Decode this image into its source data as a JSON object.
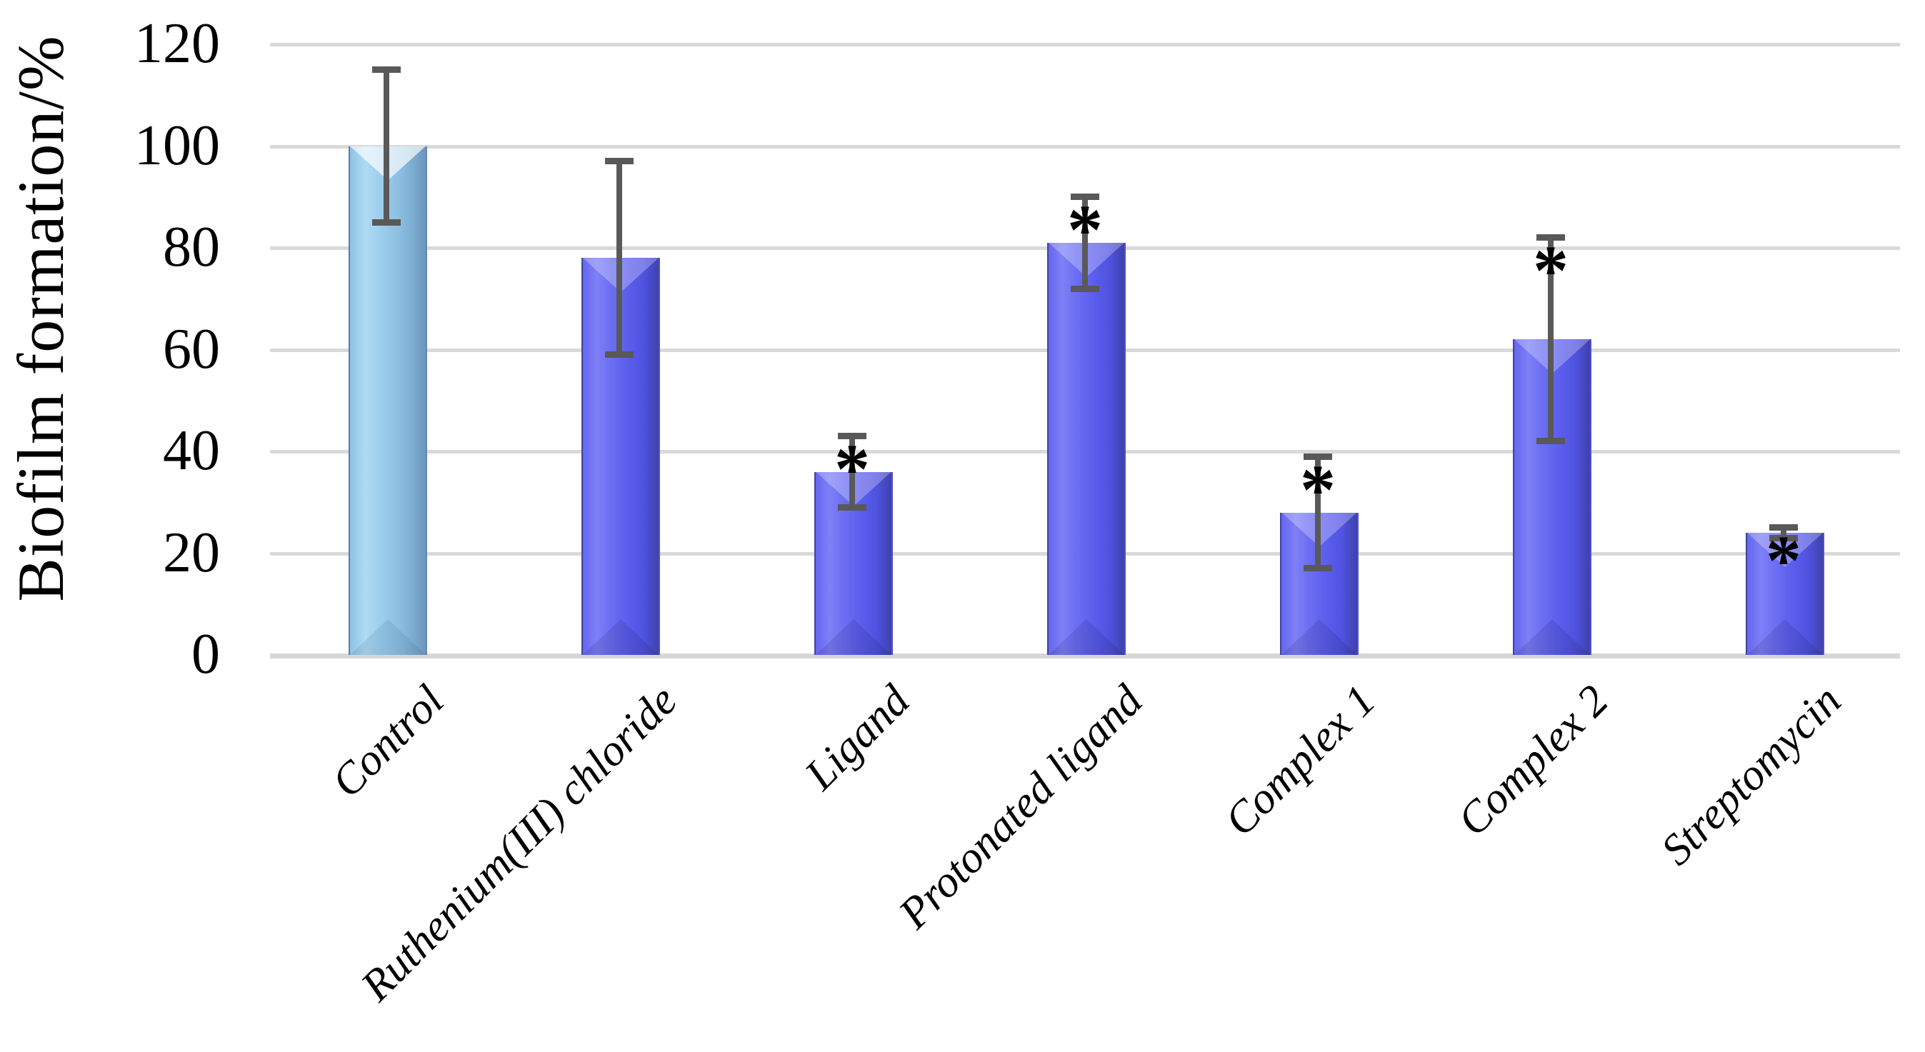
{
  "chart_data": {
    "type": "bar",
    "title": "",
    "ylabel": "Biofilm formation/%",
    "xlabel": "",
    "ylim": [
      0,
      120
    ],
    "yticks": [
      0,
      20,
      40,
      60,
      80,
      100,
      120
    ],
    "grid": "horizontal",
    "legend_position": "none",
    "categories": [
      "Control",
      "Ruthenium(III) chloride",
      "Ligand",
      "Protonated ligand",
      "Complex 1",
      "Complex 2",
      "Streptomycin"
    ],
    "series": [
      {
        "name": "Biofilm formation",
        "values": [
          100,
          78,
          36,
          81,
          28,
          62,
          24
        ],
        "error_low": [
          85,
          59,
          29,
          72,
          17,
          42,
          23
        ],
        "error_high": [
          115,
          97,
          43,
          90,
          39,
          82,
          25
        ],
        "significance": [
          "",
          "",
          "*",
          "*",
          "*",
          "*",
          "*"
        ]
      }
    ],
    "bar_styles": [
      "control",
      "treatment",
      "treatment",
      "treatment",
      "treatment",
      "treatment",
      "treatment"
    ],
    "colors": {
      "control_bar": "#96C8E9",
      "treatment_bar": "#6163EE",
      "error_bar": "#595959",
      "gridline": "#D9D9D9",
      "significance_marker": "#000000"
    }
  }
}
